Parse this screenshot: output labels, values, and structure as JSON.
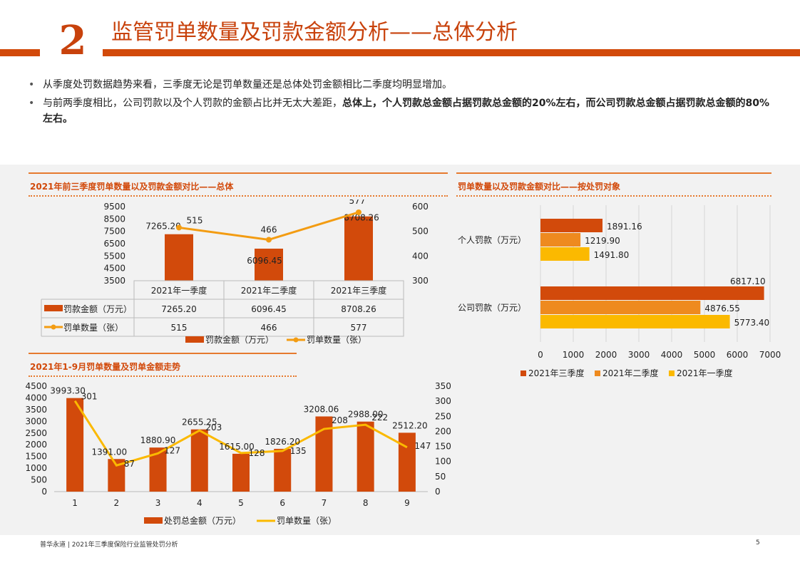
{
  "header": {
    "number": "2",
    "title": "监管罚单数量及罚款金额分析——总体分析"
  },
  "bullets": [
    {
      "text": "从季度处罚数据趋势来看，三季度无论是罚单数量还是总体处罚金额相比二季度均明显增加。",
      "bold": ""
    },
    {
      "text": "与前两季度相比，公司罚款以及个人罚款的金额占比并无太大差距，",
      "bold": "总体上，个人罚款总金额占据罚款总金额的20%左右，而公司罚款总金额占据罚款总金额的80%左右。"
    }
  ],
  "footer": {
    "text": "普华永道 | 2021年三季度保险行业监管处罚分析",
    "page": "5"
  },
  "chart_data": [
    {
      "id": "chart1",
      "type": "bar",
      "title": "2021年前三季度罚单数量以及罚款金额对比——总体",
      "categories": [
        "2021年一季度",
        "2021年二季度",
        "2021年三季度"
      ],
      "series": [
        {
          "name": "罚款金额（万元）",
          "type": "bar",
          "axis": "left",
          "values": [
            7265.2,
            6096.45,
            8708.26
          ],
          "labels": [
            "7265.20",
            "6096.45",
            "8708.26"
          ],
          "color": "#d24a0b"
        },
        {
          "name": "罚单数量（张）",
          "type": "line",
          "axis": "right",
          "values": [
            515,
            466,
            577
          ],
          "labels": [
            "515",
            "466",
            "577"
          ],
          "color": "#f39c12"
        }
      ],
      "y_left": {
        "min": 3500,
        "max": 9500,
        "ticks": [
          "9500",
          "8500",
          "7500",
          "6500",
          "5500",
          "4500",
          "3500"
        ]
      },
      "y_right": {
        "min": 300,
        "max": 600,
        "ticks": [
          "600",
          "500",
          "400",
          "300"
        ]
      },
      "table": true,
      "legend": "bottom"
    },
    {
      "id": "chart2",
      "type": "bar",
      "title": "罚单数量以及罚款金额对比——按处罚对象",
      "orientation": "horizontal",
      "categories": [
        "个人罚款（万元）",
        "公司罚款（万元）"
      ],
      "series": [
        {
          "name": "2021年三季度",
          "values": [
            1891.16,
            6817.1
          ],
          "labels": [
            "1891.16",
            "6817.10"
          ],
          "color": "#d24a0b"
        },
        {
          "name": "2021年二季度",
          "values": [
            1219.9,
            4876.55
          ],
          "labels": [
            "1219.90",
            "4876.55"
          ],
          "color": "#ee8a1f"
        },
        {
          "name": "2021年一季度",
          "values": [
            1491.8,
            5773.4
          ],
          "labels": [
            "1491.80",
            "5773.40"
          ],
          "color": "#fbb900"
        }
      ],
      "x_axis": {
        "min": 0,
        "max": 7000,
        "ticks": [
          "0",
          "1000",
          "2000",
          "3000",
          "4000",
          "5000",
          "6000",
          "7000"
        ]
      },
      "legend": "bottom"
    },
    {
      "id": "chart3",
      "type": "bar",
      "title": "2021年1-9月罚单数量及罚单金额走势",
      "categories": [
        "1",
        "2",
        "3",
        "4",
        "5",
        "6",
        "7",
        "8",
        "9"
      ],
      "series": [
        {
          "name": "处罚总金额（万元）",
          "type": "bar",
          "axis": "left",
          "values": [
            3993.3,
            1391.0,
            1880.9,
            2655.25,
            1615.0,
            1826.2,
            3208.06,
            2988.0,
            2512.2
          ],
          "labels": [
            "3993.30",
            "1391.00",
            "1880.90",
            "2655.25",
            "1615.00",
            "1826.20",
            "3208.06",
            "2988.00",
            "2512.20"
          ],
          "color": "#d24a0b"
        },
        {
          "name": "罚单数量（张）",
          "type": "line",
          "axis": "right",
          "values": [
            301,
            87,
            127,
            203,
            128,
            135,
            208,
            222,
            147
          ],
          "labels": [
            "301",
            "87",
            "127",
            "203",
            "128",
            "135",
            "208",
            "222",
            "147"
          ],
          "color": "#fbb900"
        }
      ],
      "y_left": {
        "min": 0,
        "max": 4500,
        "ticks": [
          "4500",
          "4000",
          "3500",
          "3000",
          "2500",
          "2000",
          "1500",
          "1000",
          "500",
          "0"
        ]
      },
      "y_right": {
        "min": 0,
        "max": 350,
        "ticks": [
          "350",
          "300",
          "250",
          "200",
          "150",
          "100",
          "50",
          "0"
        ]
      },
      "legend": "bottom"
    }
  ]
}
